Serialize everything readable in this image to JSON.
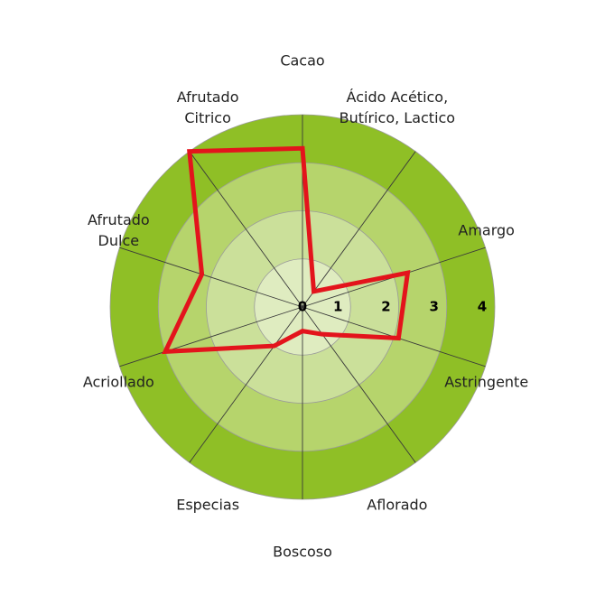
{
  "chart_data": {
    "type": "radar",
    "categories": [
      [
        "Cacao"
      ],
      [
        "Ácido Acético,",
        "Butírico, Lactico"
      ],
      [
        "Amargo"
      ],
      [
        "Astringente"
      ],
      [
        "Aflorado"
      ],
      [
        "Boscoso"
      ],
      [
        "Especias"
      ],
      [
        "Acriollado"
      ],
      [
        "Afrutado",
        "Dulce"
      ],
      [
        "Afrutado",
        "Citrico"
      ]
    ],
    "series": [
      {
        "color": "#e3141c",
        "values": [
          3.3,
          0.4,
          2.3,
          2.1,
          0.7,
          0.5,
          1,
          3,
          2.2,
          4
        ]
      }
    ],
    "rlim": [
      0,
      4
    ],
    "rticks": [
      0,
      1,
      2,
      3,
      4
    ],
    "ring_colors": [
      "#dfecc0",
      "#cbe09a",
      "#b6d46c",
      "#8fbf26"
    ]
  }
}
